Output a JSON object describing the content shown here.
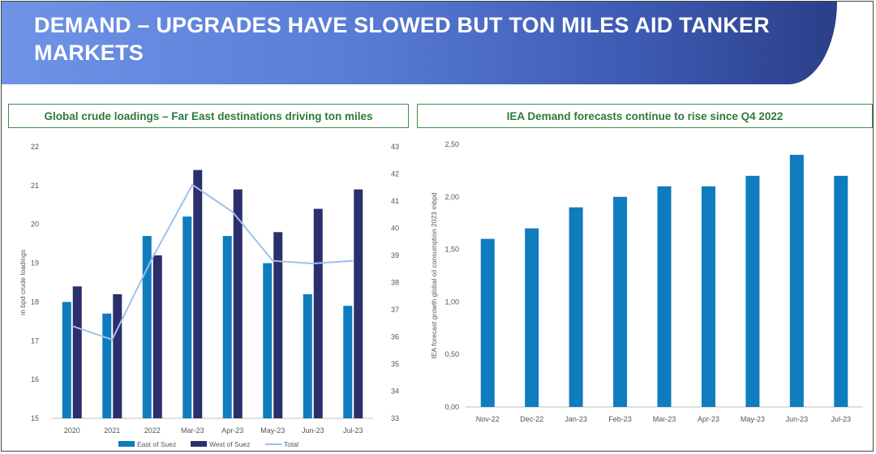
{
  "header": {
    "title": "DEMAND – UPGRADES HAVE SLOWED BUT TON MILES AID TANKER MARKETS"
  },
  "colors": {
    "east": "#0f7cbd",
    "west": "#2b2f6c",
    "total": "#9cc0ec",
    "iea": "#0f7cbd",
    "header_text": "#2d7a3a",
    "header_border": "#3c8f4a"
  },
  "chart_data": [
    {
      "type": "bar",
      "title": "Global crude loadings – Far East destinations driving ton miles",
      "ylabel": "m bpd crude loadings",
      "categories": [
        "2020",
        "2021",
        "2022",
        "Mar-23",
        "Apr-23",
        "May-23",
        "Jun-23",
        "Jul-23"
      ],
      "ylim": [
        15,
        22
      ],
      "yticks": [
        "15",
        "16",
        "17",
        "18",
        "19",
        "20",
        "21",
        "22"
      ],
      "y2lim": [
        33,
        43
      ],
      "y2ticks": [
        "33",
        "34",
        "35",
        "36",
        "37",
        "38",
        "39",
        "40",
        "41",
        "42",
        "43"
      ],
      "series": [
        {
          "name": "East of Suez",
          "kind": "bar",
          "axis": "left",
          "values": [
            18.0,
            17.7,
            19.7,
            20.2,
            19.7,
            19.0,
            18.2,
            17.9
          ]
        },
        {
          "name": "West of Suez",
          "kind": "bar",
          "axis": "left",
          "values": [
            18.4,
            18.2,
            19.2,
            21.4,
            20.9,
            19.8,
            20.4,
            20.9
          ]
        },
        {
          "name": "Total",
          "kind": "line",
          "axis": "right",
          "values": [
            36.4,
            35.9,
            38.9,
            41.6,
            40.6,
            38.8,
            38.7,
            38.8
          ]
        }
      ],
      "legend": "bottom",
      "grid": false
    },
    {
      "type": "bar",
      "title": "IEA Demand forecasts continue to rise since Q4 2022",
      "ylabel": "IEA forecast growth global oil consumption 2023 mbpd",
      "categories": [
        "Nov-22",
        "Dec-22",
        "Jan-23",
        "Feb-23",
        "Mar-23",
        "Apr-23",
        "May-23",
        "Jun-23",
        "Jul-23"
      ],
      "values": [
        1.6,
        1.7,
        1.9,
        2.0,
        2.1,
        2.1,
        2.2,
        2.4,
        2.2
      ],
      "ylim": [
        0,
        2.5
      ],
      "yticks": [
        "0,00",
        "0,50",
        "1,00",
        "1,50",
        "2,00",
        "2,50"
      ],
      "grid": false
    }
  ]
}
